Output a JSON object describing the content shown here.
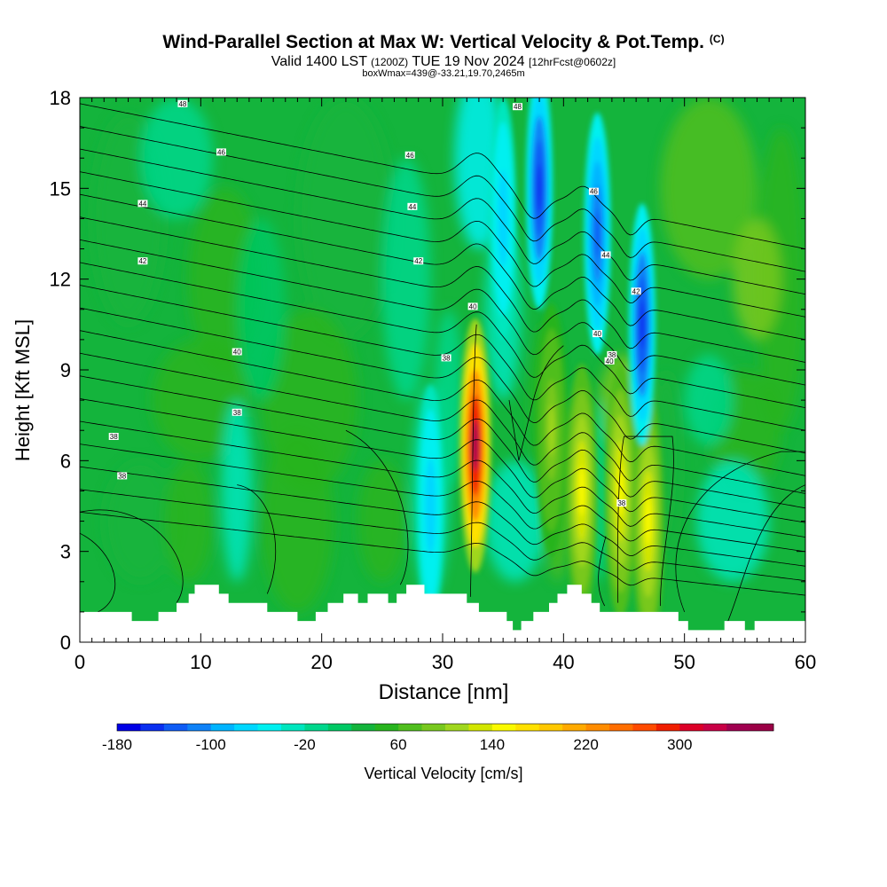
{
  "header": {
    "title": "Wind-Parallel Section at Max W: Vertical Velocity & Pot.Temp.",
    "copyright": "(C)",
    "valid_prefix": "Valid 1400 LST",
    "valid_utc": "(1200Z)",
    "valid_date": "TUE 19 Nov 2024",
    "forecast": "[12hrFcst@0602z]",
    "box_info": "boxWmax=439@-33.21,19.70,2465m"
  },
  "chart_data": {
    "type": "heatmap",
    "title": "Wind-Parallel Section at Max W: Vertical Velocity & Pot.Temp.",
    "xlabel": "Distance [nm]",
    "ylabel": "Height [Kft MSL]",
    "xlim": [
      0,
      60
    ],
    "ylim": [
      0,
      18
    ],
    "x_ticks": [
      0,
      10,
      20,
      30,
      40,
      50,
      60
    ],
    "y_ticks": [
      0,
      3,
      6,
      9,
      12,
      15,
      18
    ],
    "colorbar": {
      "label": "Vertical Velocity [cm/s]",
      "tick_labels": [
        "-180",
        "-100",
        "-20",
        "60",
        "140",
        "220",
        "300"
      ],
      "min": -180,
      "max": 380,
      "step": 20,
      "colors": [
        "#0000e6",
        "#0a2ff0",
        "#0f5cf5",
        "#0f82f7",
        "#00b4ff",
        "#00d7ff",
        "#00f0f0",
        "#00e6be",
        "#00d78c",
        "#00c864",
        "#14b43c",
        "#28b41e",
        "#50be1e",
        "#78c81e",
        "#a0d71e",
        "#d2e600",
        "#fafa00",
        "#ffe100",
        "#ffc800",
        "#ffaa00",
        "#ff8c00",
        "#ff6e00",
        "#ff4b00",
        "#f01e00",
        "#dc0028",
        "#c80046",
        "#a00050",
        "#9b0046"
      ]
    },
    "theta_contour_labels": [
      "48",
      "46",
      "46",
      "44",
      "44",
      "42",
      "42",
      "40",
      "40",
      "38",
      "38",
      "38",
      "38",
      "38",
      "38",
      "48",
      "46",
      "44",
      "42",
      "40",
      "40",
      "42"
    ],
    "vertical_velocity_features": [
      {
        "x_nm": 32.7,
        "z_kft": 6.5,
        "w_cms": 340,
        "kind": "updraft"
      },
      {
        "x_nm": 41.5,
        "z_kft": 5.0,
        "w_cms": 150,
        "kind": "updraft"
      },
      {
        "x_nm": 44.7,
        "z_kft": 5.0,
        "w_cms": 150,
        "kind": "updraft"
      },
      {
        "x_nm": 47.0,
        "z_kft": 4.0,
        "w_cms": 140,
        "kind": "updraft"
      },
      {
        "x_nm": 39.0,
        "z_kft": 7.0,
        "w_cms": 100,
        "kind": "updraft"
      },
      {
        "x_nm": 38.0,
        "z_kft": 15.0,
        "w_cms": -160,
        "kind": "downdraft"
      },
      {
        "x_nm": 42.8,
        "z_kft": 13.5,
        "w_cms": -140,
        "kind": "downdraft"
      },
      {
        "x_nm": 46.5,
        "z_kft": 10.5,
        "w_cms": -160,
        "kind": "downdraft"
      },
      {
        "x_nm": 35.0,
        "z_kft": 14.0,
        "w_cms": -80,
        "kind": "downdraft"
      },
      {
        "x_nm": 29.0,
        "z_kft": 4.5,
        "w_cms": -80,
        "kind": "downdraft"
      }
    ],
    "terrain_profile": [
      {
        "x": 0,
        "z": 1.0
      },
      {
        "x": 4.3,
        "z": 1.0
      },
      {
        "x": 4.3,
        "z": 0.7
      },
      {
        "x": 6.5,
        "z": 0.7
      },
      {
        "x": 6.5,
        "z": 1.0
      },
      {
        "x": 8.0,
        "z": 1.0
      },
      {
        "x": 8.0,
        "z": 1.3
      },
      {
        "x": 9.0,
        "z": 1.3
      },
      {
        "x": 9.0,
        "z": 1.6
      },
      {
        "x": 9.5,
        "z": 1.6
      },
      {
        "x": 9.5,
        "z": 1.9
      },
      {
        "x": 11.5,
        "z": 1.9
      },
      {
        "x": 11.5,
        "z": 1.6
      },
      {
        "x": 12.3,
        "z": 1.6
      },
      {
        "x": 12.3,
        "z": 1.3
      },
      {
        "x": 15.5,
        "z": 1.3
      },
      {
        "x": 15.5,
        "z": 1.0
      },
      {
        "x": 18.0,
        "z": 1.0
      },
      {
        "x": 18.0,
        "z": 0.7
      },
      {
        "x": 19.5,
        "z": 0.7
      },
      {
        "x": 19.5,
        "z": 1.0
      },
      {
        "x": 20.5,
        "z": 1.0
      },
      {
        "x": 20.5,
        "z": 1.3
      },
      {
        "x": 21.8,
        "z": 1.3
      },
      {
        "x": 21.8,
        "z": 1.6
      },
      {
        "x": 23.0,
        "z": 1.6
      },
      {
        "x": 23.0,
        "z": 1.3
      },
      {
        "x": 23.8,
        "z": 1.3
      },
      {
        "x": 23.8,
        "z": 1.6
      },
      {
        "x": 25.5,
        "z": 1.6
      },
      {
        "x": 25.5,
        "z": 1.3
      },
      {
        "x": 26.2,
        "z": 1.3
      },
      {
        "x": 26.2,
        "z": 1.6
      },
      {
        "x": 27.0,
        "z": 1.6
      },
      {
        "x": 27.0,
        "z": 1.9
      },
      {
        "x": 28.5,
        "z": 1.9
      },
      {
        "x": 28.5,
        "z": 1.6
      },
      {
        "x": 32.0,
        "z": 1.6
      },
      {
        "x": 32.0,
        "z": 1.3
      },
      {
        "x": 33.0,
        "z": 1.3
      },
      {
        "x": 33.0,
        "z": 1.0
      },
      {
        "x": 35.3,
        "z": 1.0
      },
      {
        "x": 35.3,
        "z": 0.7
      },
      {
        "x": 35.8,
        "z": 0.7
      },
      {
        "x": 35.8,
        "z": 0.4
      },
      {
        "x": 36.5,
        "z": 0.4
      },
      {
        "x": 36.5,
        "z": 0.7
      },
      {
        "x": 37.5,
        "z": 0.7
      },
      {
        "x": 37.5,
        "z": 1.0
      },
      {
        "x": 38.8,
        "z": 1.0
      },
      {
        "x": 38.8,
        "z": 1.3
      },
      {
        "x": 39.5,
        "z": 1.3
      },
      {
        "x": 39.5,
        "z": 1.6
      },
      {
        "x": 40.3,
        "z": 1.6
      },
      {
        "x": 40.3,
        "z": 1.9
      },
      {
        "x": 41.5,
        "z": 1.9
      },
      {
        "x": 41.5,
        "z": 1.6
      },
      {
        "x": 42.3,
        "z": 1.6
      },
      {
        "x": 42.3,
        "z": 1.3
      },
      {
        "x": 43.0,
        "z": 1.3
      },
      {
        "x": 43.0,
        "z": 1.0
      },
      {
        "x": 49.5,
        "z": 1.0
      },
      {
        "x": 49.5,
        "z": 0.7
      },
      {
        "x": 50.3,
        "z": 0.7
      },
      {
        "x": 50.3,
        "z": 0.4
      },
      {
        "x": 53.3,
        "z": 0.4
      },
      {
        "x": 53.3,
        "z": 0.7
      },
      {
        "x": 55.0,
        "z": 0.7
      },
      {
        "x": 55.0,
        "z": 0.4
      },
      {
        "x": 55.8,
        "z": 0.4
      },
      {
        "x": 55.8,
        "z": 0.7
      },
      {
        "x": 60.0,
        "z": 0.7
      }
    ]
  }
}
